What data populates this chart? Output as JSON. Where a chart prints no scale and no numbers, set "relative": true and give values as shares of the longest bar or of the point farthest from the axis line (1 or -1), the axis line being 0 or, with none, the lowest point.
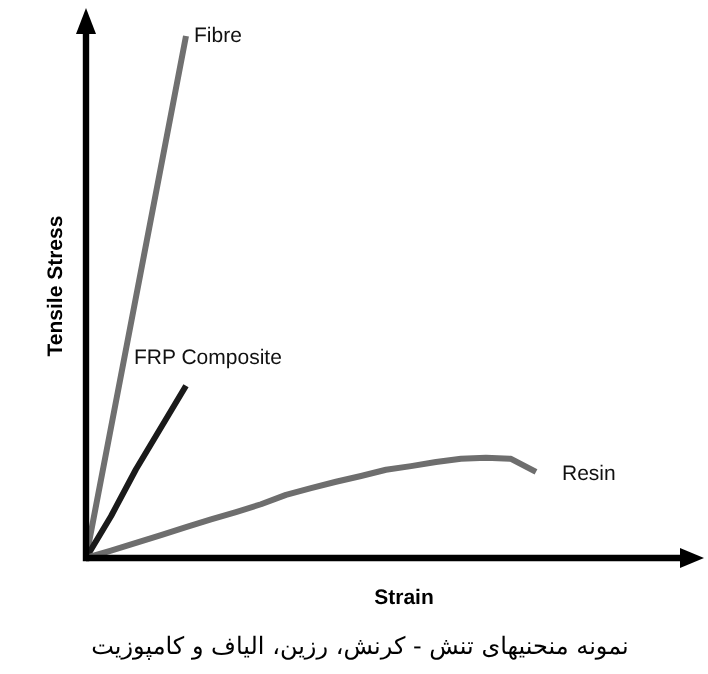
{
  "chart_data": {
    "type": "line",
    "relative": true,
    "xlabel": "Strain",
    "ylabel": "Tensile Stress",
    "annotations": [
      "نمونه منحنیهای تنش - کرنش، رزین، الیاف و کامپوزیت"
    ],
    "categories": [
      null,
      null,
      null,
      null,
      null,
      null,
      null,
      null,
      null,
      null,
      null,
      null,
      null,
      null,
      null,
      null,
      null,
      null,
      null
    ],
    "series": [
      {
        "name": "Fibre",
        "color": "#707070",
        "values": [
          0,
          0.25,
          0.5,
          0.75,
          1,
          null,
          null,
          null,
          null,
          null,
          null,
          null,
          null,
          null,
          null,
          null,
          null,
          null,
          null
        ]
      },
      {
        "name": "FRP Composite",
        "color": "#1a1a1a",
        "values": [
          0,
          0.08,
          0.17,
          0.25,
          0.33,
          null,
          null,
          null,
          null,
          null,
          null,
          null,
          null,
          null,
          null,
          null,
          null,
          null,
          null
        ]
      },
      {
        "name": "Resin",
        "color": "#6e6e6e",
        "values": [
          0,
          0.014,
          0.029,
          0.044,
          0.059,
          0.074,
          0.088,
          0.103,
          0.121,
          0.134,
          0.146,
          0.157,
          0.169,
          0.176,
          0.184,
          0.19,
          0.192,
          0.19,
          0.165
        ]
      }
    ],
    "marker": "none",
    "line_style": "solid"
  }
}
